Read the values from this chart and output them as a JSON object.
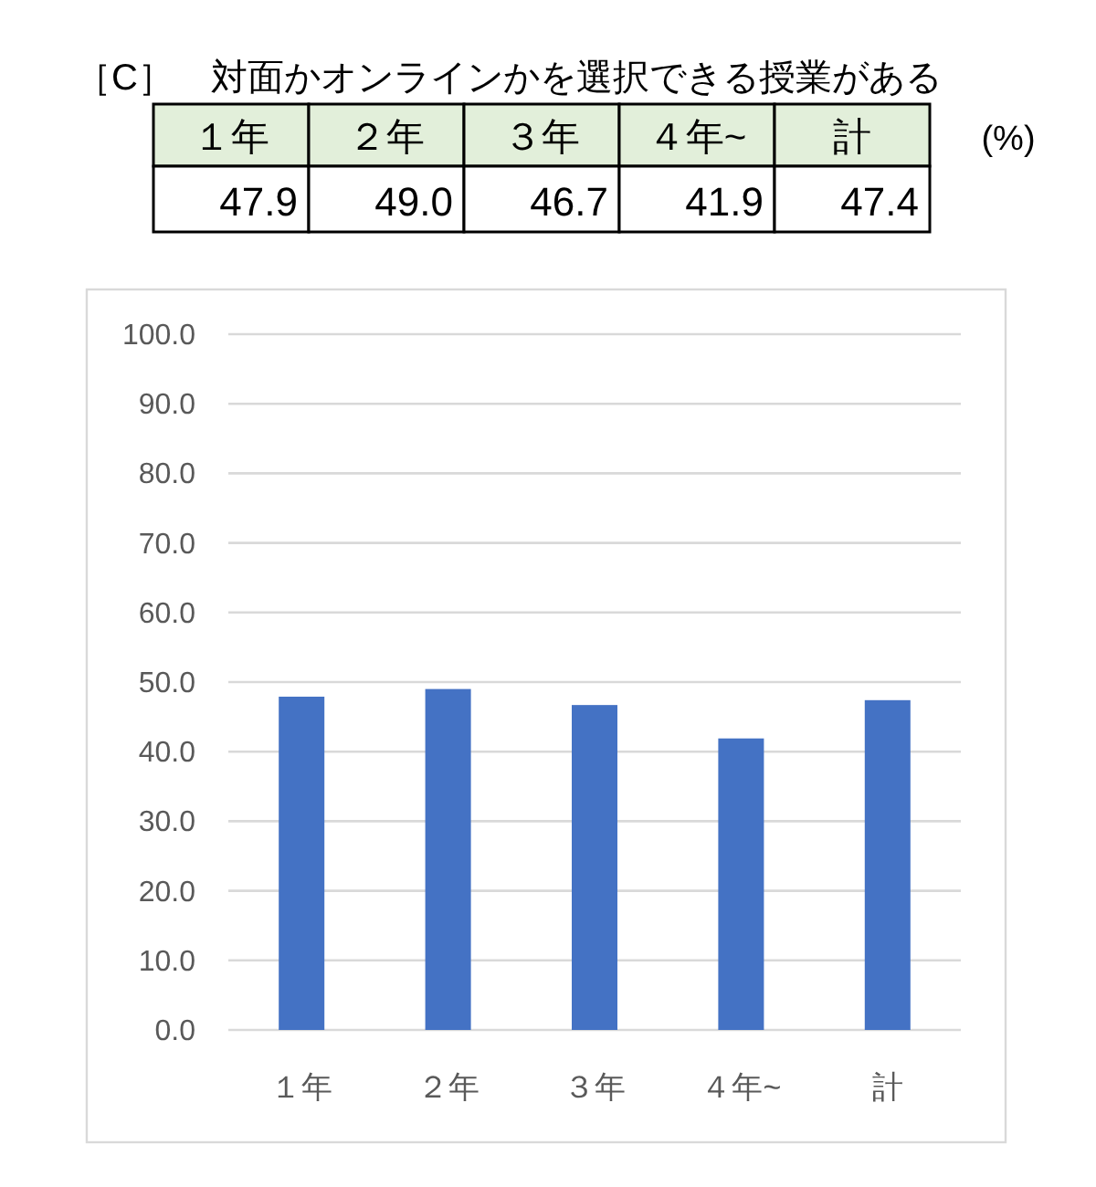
{
  "chart_data": {
    "type": "bar",
    "title": "［C］　対面かオンラインかを選択できる授業がある",
    "categories": [
      "１年",
      "２年",
      "３年",
      "４年~",
      "計"
    ],
    "values": [
      47.9,
      49.0,
      46.7,
      41.9,
      47.4
    ],
    "color": "#4472c4",
    "value_labels": [
      "47.9",
      "49.0",
      "46.7",
      "41.9",
      "47.4"
    ],
    "annotations": [
      "(%)"
    ],
    "ylim": [
      0,
      100
    ],
    "yticks": [
      {
        "value": 0,
        "label": "0.0"
      },
      {
        "value": 10,
        "label": "10.0"
      },
      {
        "value": 20,
        "label": "20.0"
      },
      {
        "value": 30,
        "label": "30.0"
      },
      {
        "value": 40,
        "label": "40.0"
      },
      {
        "value": 50,
        "label": "50.0"
      },
      {
        "value": 60,
        "label": "60.0"
      },
      {
        "value": 70,
        "label": "70.0"
      },
      {
        "value": 80,
        "label": "80.0"
      },
      {
        "value": 90,
        "label": "90.0"
      },
      {
        "value": 100,
        "label": "100.0"
      }
    ],
    "grid": "y"
  }
}
